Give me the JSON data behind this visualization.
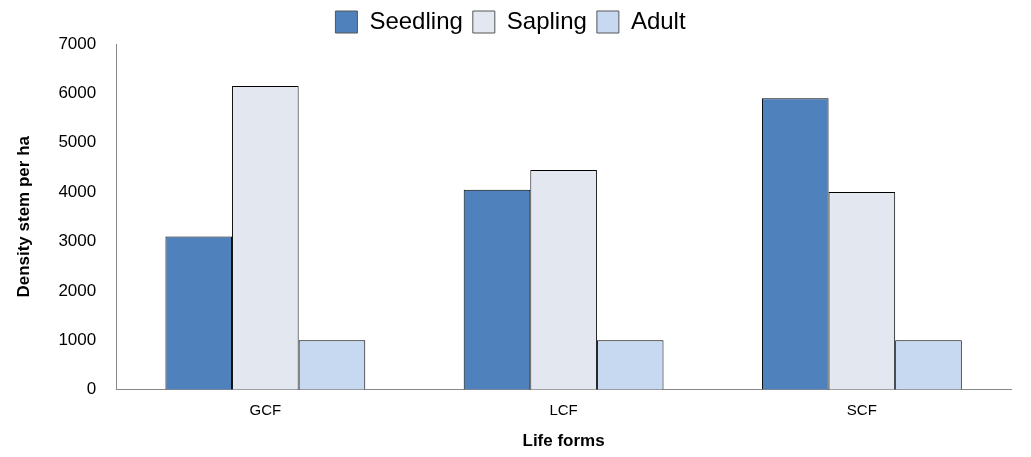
{
  "chart_data": {
    "type": "bar",
    "xlabel": "Life forms",
    "ylabel": "Density stem per ha",
    "categories": [
      "GCF",
      "LCF",
      "SCF"
    ],
    "series": [
      {
        "name": "Seedling",
        "color": "#4f81bd",
        "values": [
          3100,
          4050,
          5900
        ]
      },
      {
        "name": "Sapling",
        "color": "#e3e8f0",
        "values": [
          6150,
          4450,
          4000
        ]
      },
      {
        "name": "Adult",
        "color": "#c6d9f1",
        "values": [
          1000,
          1000,
          1000
        ]
      }
    ],
    "ylim": [
      0,
      7000
    ],
    "yticks": [
      0,
      1000,
      2000,
      3000,
      4000,
      5000,
      6000,
      7000
    ],
    "grid": false,
    "legend": "top"
  }
}
